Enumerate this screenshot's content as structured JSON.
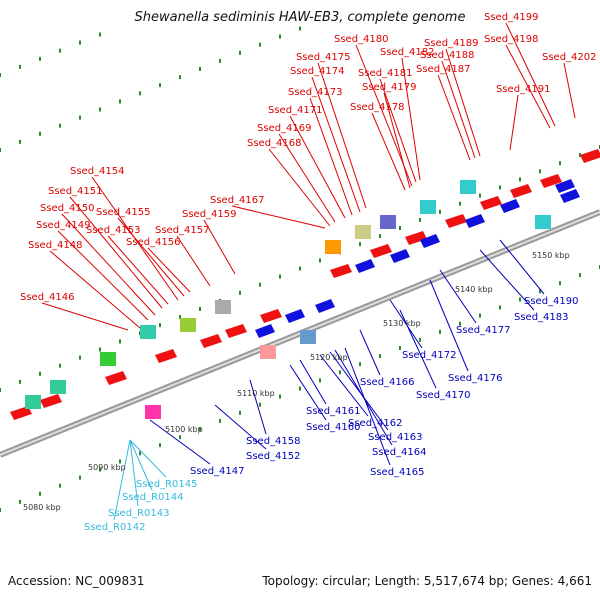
{
  "title": "Shewanella sediminis HAW-EB3, complete genome",
  "footer": {
    "accession": "Accession: NC_009831",
    "summary": "Topology: circular; Length: 5,517,674 bp; Genes: 4,661"
  },
  "colors": {
    "forward_label": "#dd0000",
    "reverse_label": "#0000bb",
    "rna_label": "#33bbdd",
    "forward_gene": "#ee1111",
    "reverse_gene": "#1111dd",
    "backbone": "#888888",
    "tick_dot": "#2a8a2a"
  },
  "scale_labels": [
    "5080 kbp",
    "5090 kbp",
    "5100 kbp",
    "5110 kbp",
    "5120 kbp",
    "5130 kbp",
    "5140 kbp",
    "5150 kbp"
  ],
  "forward_labels": [
    "Ssed_4146",
    "Ssed_4148",
    "Ssed_4149",
    "Ssed_4150",
    "Ssed_4151",
    "Ssed_4153",
    "Ssed_4154",
    "Ssed_4155",
    "Ssed_4156",
    "Ssed_4157",
    "Ssed_4159",
    "Ssed_4167",
    "Ssed_4168",
    "Ssed_4169",
    "Ssed_4171",
    "Ssed_4173",
    "Ssed_4174",
    "Ssed_4175",
    "Ssed_4178",
    "Ssed_4179",
    "Ssed_4180",
    "Ssed_4181",
    "Ssed_4182",
    "Ssed_4187",
    "Ssed_4188",
    "Ssed_4189",
    "Ssed_4191",
    "Ssed_4198",
    "Ssed_4199",
    "Ssed_4202"
  ],
  "reverse_labels": [
    "Ssed_4147",
    "Ssed_4152",
    "Ssed_4158",
    "Ssed_4160",
    "Ssed_4161",
    "Ssed_4162",
    "Ssed_4163",
    "Ssed_4164",
    "Ssed_4165",
    "Ssed_4166",
    "Ssed_4170",
    "Ssed_4172",
    "Ssed_4176",
    "Ssed_4177",
    "Ssed_4183",
    "Ssed_4190"
  ],
  "rna_labels": [
    "Ssed_R0142",
    "Ssed_R0143",
    "Ssed_R0144",
    "Ssed_R0145"
  ]
}
